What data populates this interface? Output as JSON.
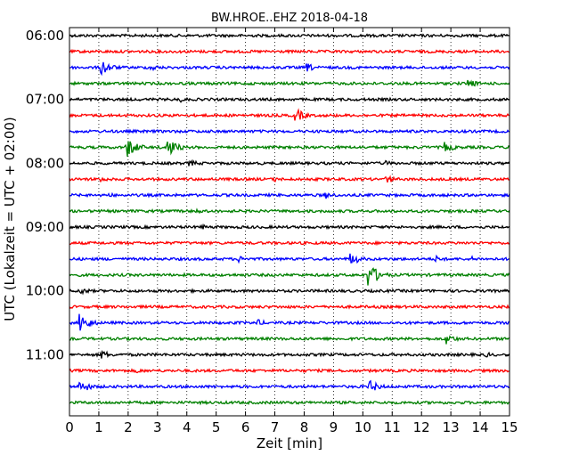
{
  "chart_data": {
    "type": "line",
    "title": "BW.HROE..EHZ 2018-04-18",
    "xlabel": "Zeit  [min]",
    "ylabel": "UTC (Lokalzeit = UTC + 02:00)",
    "xlim": [
      0,
      15
    ],
    "x_ticks": [
      "0",
      "1",
      "2",
      "3",
      "4",
      "5",
      "6",
      "7",
      "8",
      "9",
      "10",
      "11",
      "12",
      "13",
      "14",
      "15"
    ],
    "y_tick_labels": [
      "06:00",
      "07:00",
      "08:00",
      "09:00",
      "10:00",
      "11:00"
    ],
    "grid": "vertical dotted",
    "trace_interval_min": 15,
    "color_cycle": [
      "#000000",
      "#ff0000",
      "#0000ff",
      "#008000"
    ],
    "traces": [
      {
        "start": "06:00",
        "events": []
      },
      {
        "start": "06:15",
        "events": []
      },
      {
        "start": "06:30",
        "events": [
          {
            "t": 1.1,
            "amp": 9
          },
          {
            "t": 2.8,
            "amp": 4
          },
          {
            "t": 8.1,
            "amp": 5
          }
        ]
      },
      {
        "start": "06:45",
        "events": [
          {
            "t": 13.6,
            "amp": 5
          }
        ]
      },
      {
        "start": "07:00",
        "events": [
          {
            "t": 3.8,
            "amp": 3
          }
        ]
      },
      {
        "start": "07:15",
        "events": [
          {
            "t": 7.7,
            "amp": 8
          }
        ]
      },
      {
        "start": "07:30",
        "events": []
      },
      {
        "start": "07:45",
        "events": [
          {
            "t": 1.95,
            "amp": 12
          },
          {
            "t": 3.3,
            "amp": 12
          },
          {
            "t": 12.8,
            "amp": 6
          }
        ]
      },
      {
        "start": "08:00",
        "events": [
          {
            "t": 4.1,
            "amp": 4
          },
          {
            "t": 10.8,
            "amp": 3
          }
        ]
      },
      {
        "start": "08:15",
        "events": [
          {
            "t": 1.0,
            "amp": 4
          },
          {
            "t": 7.0,
            "amp": 3
          },
          {
            "t": 10.8,
            "amp": 5
          }
        ]
      },
      {
        "start": "08:30",
        "events": [
          {
            "t": 1.3,
            "amp": 3
          },
          {
            "t": 8.7,
            "amp": 5
          }
        ]
      },
      {
        "start": "08:45",
        "events": [
          {
            "t": 4.3,
            "amp": 3
          }
        ]
      },
      {
        "start": "09:00",
        "events": [
          {
            "t": 4.5,
            "amp": 3
          }
        ]
      },
      {
        "start": "09:15",
        "events": []
      },
      {
        "start": "09:30",
        "events": [
          {
            "t": 5.8,
            "amp": 4
          },
          {
            "t": 9.6,
            "amp": 7
          },
          {
            "t": 12.5,
            "amp": 4
          },
          {
            "t": 13.7,
            "amp": 3
          }
        ]
      },
      {
        "start": "09:45",
        "events": [
          {
            "t": 10.2,
            "amp": 14
          }
        ]
      },
      {
        "start": "10:00",
        "events": [
          {
            "t": 0.4,
            "amp": 4
          }
        ]
      },
      {
        "start": "10:15",
        "events": []
      },
      {
        "start": "10:30",
        "events": [
          {
            "t": 0.35,
            "amp": 12
          },
          {
            "t": 6.4,
            "amp": 4
          }
        ]
      },
      {
        "start": "10:45",
        "events": [
          {
            "t": 12.8,
            "amp": 7
          }
        ]
      },
      {
        "start": "11:00",
        "events": [
          {
            "t": 1.1,
            "amp": 5
          },
          {
            "t": 14.2,
            "amp": 3
          }
        ]
      },
      {
        "start": "11:15",
        "events": [
          {
            "t": 2.3,
            "amp": 3
          }
        ]
      },
      {
        "start": "11:30",
        "events": [
          {
            "t": 0.35,
            "amp": 8
          },
          {
            "t": 10.2,
            "amp": 8
          }
        ]
      },
      {
        "start": "11:45",
        "events": []
      }
    ]
  }
}
